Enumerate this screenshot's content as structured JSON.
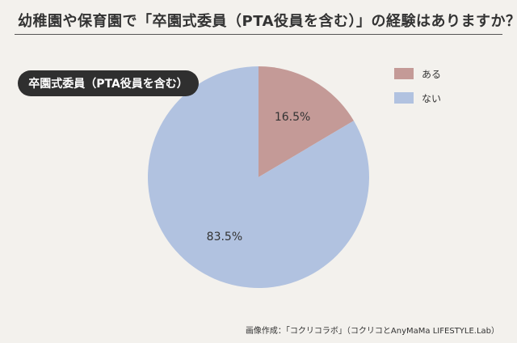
{
  "header": {
    "title": "幼稚園や保育園で「卒園式委員（PTA役員を含む）」の経験はありますか？"
  },
  "pill_label": "卒園式委員（PTA役員を含む）",
  "credit": "画像作成：「コクリコラボ」（コクリコとAnyMaMa LIFESTYLE.Lab）",
  "colors": {
    "aru": "#c49a97",
    "nai": "#b1c2e0",
    "background": "#f3f1ed"
  },
  "chart_data": {
    "type": "pie",
    "title": "幼稚園や保育園で「卒園式委員（PTA役員を含む）」の経験はありますか？",
    "slices": [
      {
        "label": "ある",
        "value": 16.5,
        "value_label": "16.5%"
      },
      {
        "label": "ない",
        "value": 83.5,
        "value_label": "83.5%"
      }
    ],
    "start": "top, clockwise",
    "legend": "top-right"
  }
}
